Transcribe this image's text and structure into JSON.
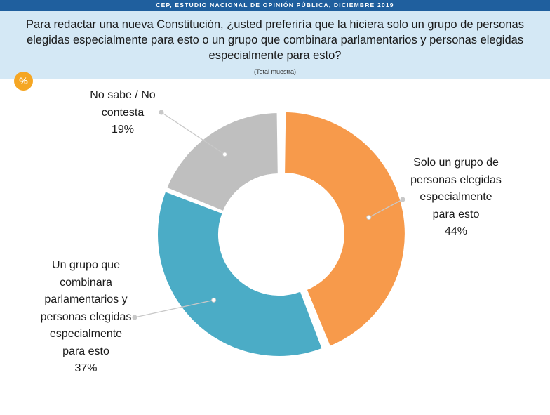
{
  "header": {
    "banner": "CEP, ESTUDIO NACIONAL DE OPINIÓN PÚBLICA, DICIEMBRE 2019",
    "question_lines": [
      "Para redactar una nueva Constitución, ¿usted preferiría que la hiciera solo un grupo de personas",
      "elegidas especialmente para esto o un grupo que combinara parlamentarios y personas elegidas",
      "especialmente para esto?"
    ],
    "sample": "(Total muestra)",
    "unit_badge": "%"
  },
  "colors": {
    "banner": "#1f5f9e",
    "question_bg": "#d4e8f5",
    "badge": "#f5a623",
    "solo": "#f79a4b",
    "combinado": "#4bacc6",
    "ns_nc": "#bfbfbf",
    "leader": "#c8c8c8"
  },
  "chart_data": {
    "type": "pie",
    "variant": "donut",
    "title": "",
    "slices": [
      {
        "label_lines": [
          "Solo un grupo de",
          "personas elegidas",
          "especialmente",
          "para esto"
        ],
        "value": 44,
        "value_label": "44%",
        "color": "#f79a4b"
      },
      {
        "label_lines": [
          "Un grupo que",
          "combinara",
          "parlamentarios y",
          "personas elegidas",
          "especialmente",
          "para esto"
        ],
        "value": 37,
        "value_label": "37%",
        "color": "#4bacc6"
      },
      {
        "label_lines": [
          "No sabe / No",
          "contesta"
        ],
        "value": 19,
        "value_label": "19%",
        "color": "#bfbfbf"
      }
    ],
    "legend": "none",
    "data_labels": "outside-with-leader-lines"
  }
}
